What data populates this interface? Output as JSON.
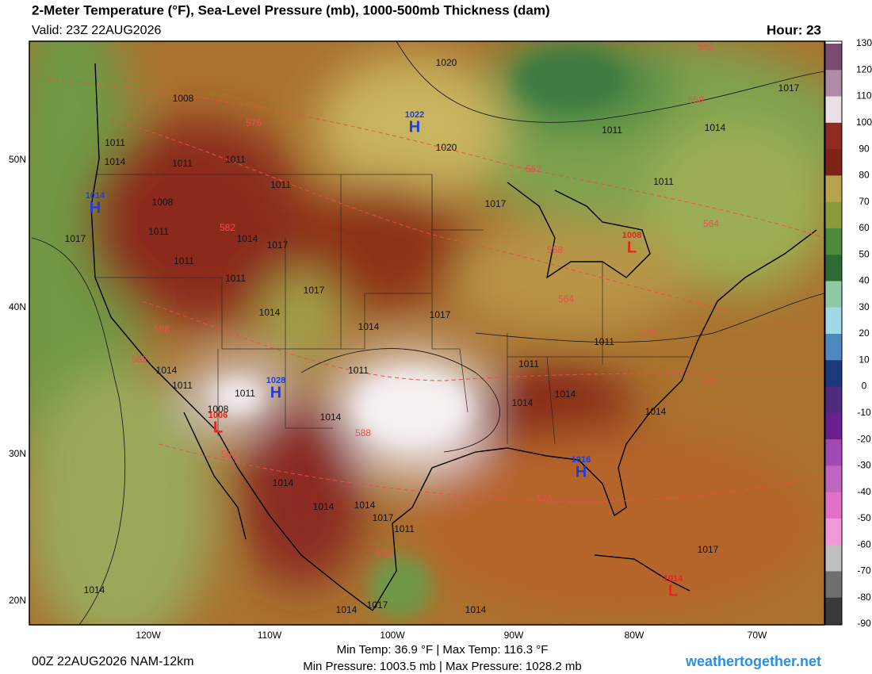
{
  "header": {
    "title": "2-Meter Temperature (°F), Sea-Level Pressure (mb), 1000-500mb Thickness (dam)",
    "valid": "Valid: 23Z 22AUG2026",
    "hour": "Hour: 23"
  },
  "colorbar": {
    "ticks": [
      130,
      120,
      110,
      100,
      90,
      80,
      70,
      60,
      50,
      40,
      30,
      20,
      10,
      0,
      -10,
      -20,
      -30,
      -40,
      -50,
      -60,
      -70,
      -80,
      -90
    ]
  },
  "axes": {
    "lat": [
      "50N",
      "40N",
      "30N",
      "20N"
    ],
    "lon": [
      "120W",
      "110W",
      "100W",
      "90W",
      "80W",
      "70W"
    ]
  },
  "pressure_labels": [
    "1020",
    "1008",
    "1020",
    "1017",
    "1011",
    "1014",
    "1011",
    "1014",
    "1011",
    "1011",
    "1011",
    "1011",
    "1008",
    "1017",
    "1017",
    "1011",
    "1014",
    "1017",
    "1011",
    "1011",
    "1017",
    "1014",
    "1014",
    "1017",
    "1011",
    "1014",
    "1011",
    "1011",
    "1011",
    "1014",
    "1014",
    "1008",
    "1014",
    "1014",
    "1014",
    "1014",
    "1014",
    "1017",
    "1011",
    "1017",
    "1014",
    "1014",
    "1017",
    "1014",
    "1011"
  ],
  "thickness_labels": [
    "552",
    "558",
    "576",
    "552",
    "564",
    "582",
    "558",
    "564",
    "570",
    "588",
    "582",
    "576",
    "588",
    "582",
    "576",
    "582"
  ],
  "centers": [
    {
      "letter": "H",
      "value": "1022"
    },
    {
      "letter": "H",
      "value": "1014"
    },
    {
      "letter": "H",
      "value": "1028"
    },
    {
      "letter": "L",
      "value": "1006"
    },
    {
      "letter": "H",
      "value": "1016"
    },
    {
      "letter": "L",
      "value": "1008"
    },
    {
      "letter": "L",
      "value": "1014"
    }
  ],
  "footer": {
    "run": "00Z 22AUG2026 NAM-12km",
    "temps": "Min Temp: 36.9 °F | Max Temp: 116.3 °F",
    "pressure": "Min Pressure: 1003.5 mb | Max Pressure: 1028.2 mb",
    "site": "weathertogether.net"
  }
}
